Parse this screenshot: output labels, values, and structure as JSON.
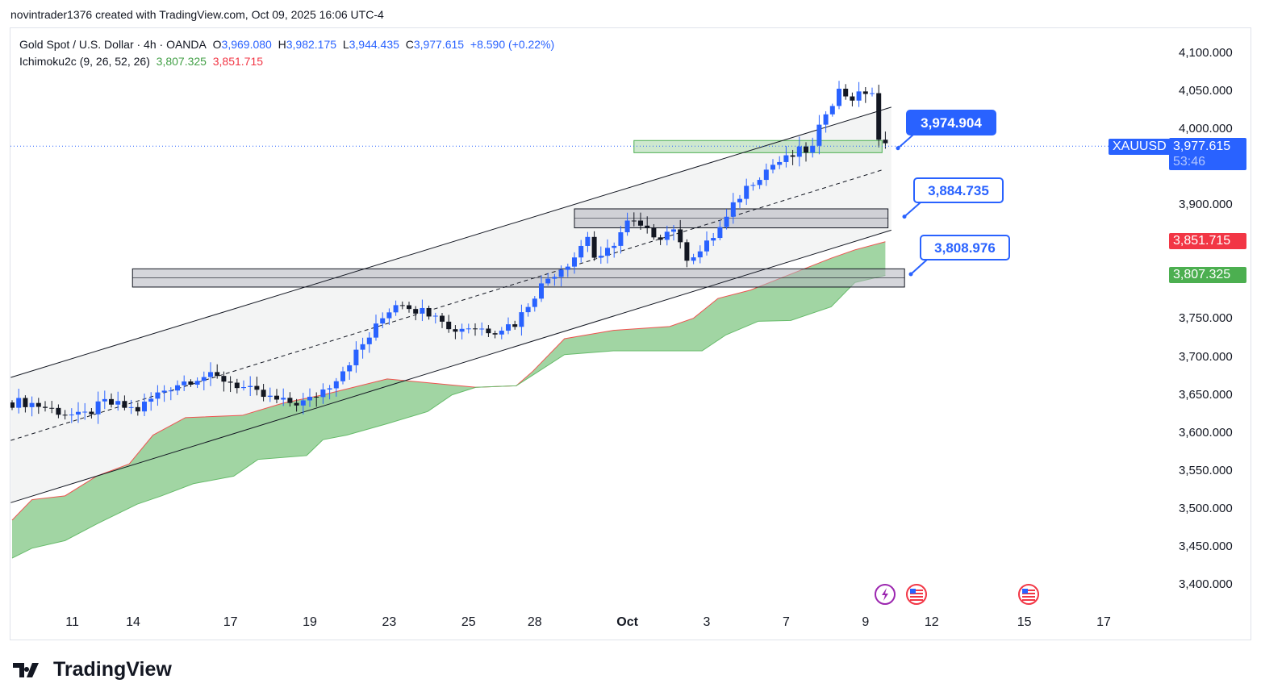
{
  "attribution": "novintrader1376 created with TradingView.com, Oct 09, 2025 16:06 UTC-4",
  "legend": {
    "symbol": "Gold Spot / U.S. Dollar · 4h · OANDA",
    "o_label": "O",
    "o": "3,969.080",
    "h_label": "H",
    "h": "3,982.175",
    "l_label": "L",
    "l": "3,944.435",
    "c_label": "C",
    "c": "3,977.615",
    "change": "+8.590 (+0.22%)",
    "indicator": "Ichimoku2c (9, 26, 52, 26)",
    "ind_val1": "3,807.325",
    "ind_val2": "3,851.715"
  },
  "price_tags": {
    "symbol": "XAUUSD",
    "last": "3,977.615",
    "countdown": "53:46",
    "red": "3,851.715",
    "green": "3,807.325"
  },
  "colors": {
    "up": "#2962ff",
    "down": "#131722",
    "cloud": "#81c784",
    "cloud_edge": "#ef5350",
    "accent": "#2962ff"
  },
  "footer": {
    "brand": "TradingView"
  },
  "chart_data": {
    "type": "candlestick",
    "ylim": [
      3380,
      4120
    ],
    "y_ticks": [
      {
        "v": 4100,
        "t": "4,100.000"
      },
      {
        "v": 4050,
        "t": "4,050.000"
      },
      {
        "v": 4000,
        "t": "4,000.000"
      },
      {
        "v": 3900,
        "t": "3,900.000"
      },
      {
        "v": 3750,
        "t": "3,750.000"
      },
      {
        "v": 3700,
        "t": "3,700.000"
      },
      {
        "v": 3650,
        "t": "3,650.000"
      },
      {
        "v": 3600,
        "t": "3,600.000"
      },
      {
        "v": 3550,
        "t": "3,550.000"
      },
      {
        "v": 3500,
        "t": "3,500.000"
      },
      {
        "v": 3450,
        "t": "3,450.000"
      },
      {
        "v": 3400,
        "t": "3,400.000"
      }
    ],
    "x_ticks": [
      {
        "bar": 9.1,
        "t": "11"
      },
      {
        "bar": 18.3,
        "t": "14"
      },
      {
        "bar": 33,
        "t": "17"
      },
      {
        "bar": 45,
        "t": "19"
      },
      {
        "bar": 57,
        "t": "23"
      },
      {
        "bar": 69,
        "t": "25"
      },
      {
        "bar": 79,
        "t": "28"
      },
      {
        "bar": 93,
        "t": "Oct"
      },
      {
        "bar": 105,
        "t": "3"
      },
      {
        "bar": 117,
        "t": "7"
      },
      {
        "bar": 129,
        "t": "9"
      },
      {
        "bar": 139,
        "t": "12"
      },
      {
        "bar": 153,
        "t": "15"
      },
      {
        "bar": 165,
        "t": "17"
      }
    ],
    "price_path": [
      [
        0,
        3640
      ],
      [
        2.4,
        3640
      ],
      [
        10.4,
        3620
      ],
      [
        14,
        3640
      ],
      [
        18.9,
        3630
      ],
      [
        22.6,
        3655
      ],
      [
        25,
        3665
      ],
      [
        28.7,
        3675
      ],
      [
        32.3,
        3670
      ],
      [
        34.8,
        3660
      ],
      [
        37.2,
        3650
      ],
      [
        40.9,
        3640
      ],
      [
        44.5,
        3640
      ],
      [
        48.2,
        3665
      ],
      [
        50.6,
        3690
      ],
      [
        54.3,
        3730
      ],
      [
        56.7,
        3760
      ],
      [
        58.5,
        3775
      ],
      [
        61.6,
        3760
      ],
      [
        64.6,
        3760
      ],
      [
        65.9,
        3735
      ],
      [
        68.9,
        3740
      ],
      [
        72.6,
        3735
      ],
      [
        76.2,
        3745
      ],
      [
        78.7,
        3780
      ],
      [
        81.1,
        3805
      ],
      [
        84.8,
        3830
      ],
      [
        87,
        3860
      ],
      [
        88.4,
        3820
      ],
      [
        90.9,
        3850
      ],
      [
        93.3,
        3880
      ],
      [
        95.7,
        3865
      ],
      [
        98.2,
        3860
      ],
      [
        100.6,
        3875
      ],
      [
        101.2,
        3830
      ],
      [
        104.3,
        3840
      ],
      [
        107.9,
        3880
      ],
      [
        109.8,
        3910
      ],
      [
        111.6,
        3930
      ],
      [
        115.2,
        3955
      ],
      [
        117.1,
        3960
      ],
      [
        118.9,
        3970
      ],
      [
        121.3,
        3975
      ],
      [
        122.6,
        4020
      ],
      [
        125,
        4050
      ],
      [
        127.4,
        4040
      ],
      [
        129.9,
        4055
      ],
      [
        131.1,
        3975
      ],
      [
        132,
        3977.6
      ]
    ],
    "cloud_top": [
      [
        0,
        3485
      ],
      [
        3,
        3512
      ],
      [
        8,
        3517
      ],
      [
        12.8,
        3543
      ],
      [
        17.7,
        3559
      ],
      [
        21.3,
        3597
      ],
      [
        26.2,
        3620
      ],
      [
        34.8,
        3623
      ],
      [
        40.9,
        3639
      ],
      [
        47,
        3650
      ],
      [
        56.7,
        3671
      ],
      [
        70.1,
        3660
      ],
      [
        76.2,
        3662
      ],
      [
        78.7,
        3681
      ],
      [
        83.5,
        3724
      ],
      [
        90.9,
        3735
      ],
      [
        99.4,
        3740
      ],
      [
        103,
        3751
      ],
      [
        106.7,
        3777
      ],
      [
        111.6,
        3788
      ],
      [
        117.7,
        3809
      ],
      [
        123.8,
        3830
      ],
      [
        127.4,
        3841
      ],
      [
        132,
        3851.7
      ]
    ],
    "cloud_bottom": [
      [
        0,
        3435
      ],
      [
        3,
        3448
      ],
      [
        8,
        3458
      ],
      [
        12.8,
        3480
      ],
      [
        18.9,
        3506
      ],
      [
        22.6,
        3517
      ],
      [
        27.4,
        3533
      ],
      [
        33.5,
        3543
      ],
      [
        37.2,
        3565
      ],
      [
        44.5,
        3570
      ],
      [
        47,
        3591
      ],
      [
        50.6,
        3597
      ],
      [
        56.7,
        3612
      ],
      [
        62.8,
        3628
      ],
      [
        66.5,
        3650
      ],
      [
        70.1,
        3660
      ],
      [
        76.2,
        3662
      ],
      [
        78.7,
        3676
      ],
      [
        83.5,
        3703
      ],
      [
        90.9,
        3708
      ],
      [
        104.3,
        3708
      ],
      [
        107.9,
        3729
      ],
      [
        112.8,
        3747
      ],
      [
        117.7,
        3748
      ],
      [
        123.8,
        3766
      ],
      [
        127.4,
        3798
      ],
      [
        132,
        3807.3
      ]
    ],
    "channel": {
      "upper": [
        [
          -0.2,
          3673
        ],
        [
          132.9,
          4029
        ]
      ],
      "lower": [
        [
          -0.2,
          3508
        ],
        [
          132.9,
          3867
        ]
      ],
      "middle": [
        [
          -0.2,
          3590
        ],
        [
          131.8,
          3947
        ]
      ]
    },
    "zones": [
      {
        "bars": [
          18.2,
          134.9
        ],
        "price": [
          3792,
          3816
        ],
        "color": "#b2b5be"
      },
      {
        "bars": [
          85,
          132.4
        ],
        "price": [
          3870,
          3895
        ],
        "color": "#b2b5be"
      },
      {
        "bars": [
          94,
          131.5
        ],
        "price": [
          3969,
          3985
        ],
        "color": "#a5d6a7"
      }
    ],
    "callouts": [
      {
        "text": "3,974.904",
        "price": 3974.904,
        "filled": true
      },
      {
        "text": "3,884.735",
        "price": 3884.735,
        "filled": false
      },
      {
        "text": "3,808.976",
        "price": 3808.976,
        "filled": false
      }
    ],
    "last_price": 3977.615
  }
}
